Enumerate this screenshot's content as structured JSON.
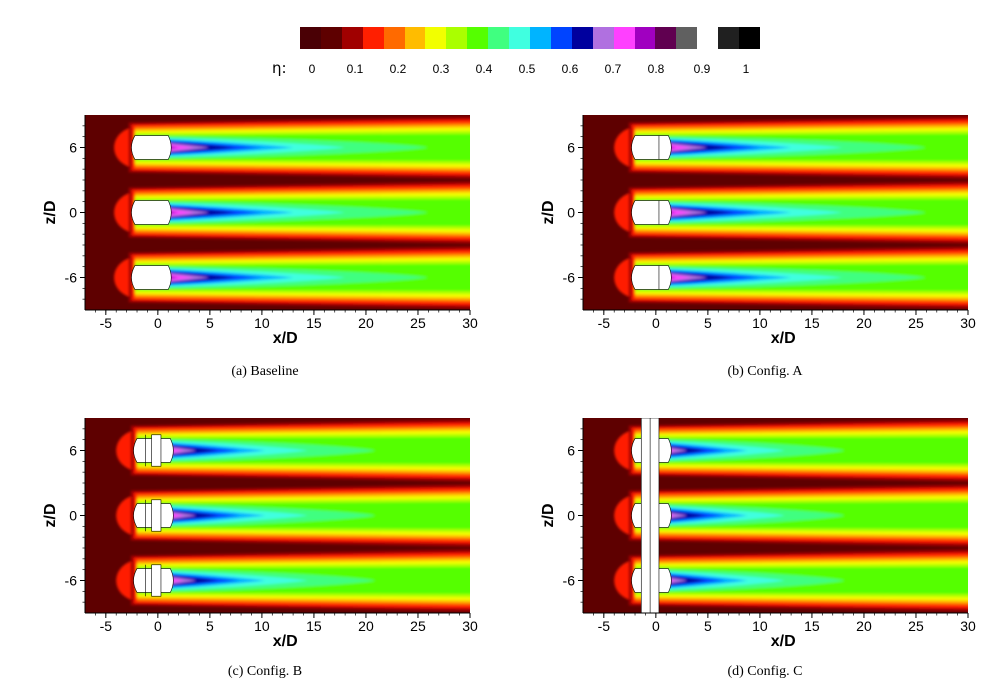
{
  "colorbar": {
    "variable": "η:",
    "tick_labels": [
      "0",
      "0.1",
      "0.2",
      "0.3",
      "0.4",
      "0.5",
      "0.6",
      "0.7",
      "0.8",
      "0.9",
      "1"
    ],
    "colors": [
      "#4a0005",
      "#5e0000",
      "#a00000",
      "#ff1f00",
      "#ff6a00",
      "#ffbc00",
      "#f2ff00",
      "#aaff00",
      "#55ff00",
      "#40ff80",
      "#40ffe0",
      "#00b4ff",
      "#0044ff",
      "#00009e",
      "#b070e0",
      "#ff40ff",
      "#a000c0",
      "#600050",
      "#606060",
      "#ffffff",
      "#202020",
      "#000000"
    ]
  },
  "chart_data": [
    {
      "type": "heatmap",
      "caption": "(a)  Baseline",
      "xlabel": "x/D",
      "ylabel": "z/D",
      "xlim": [
        -7,
        30
      ],
      "ylim": [
        -9,
        9
      ],
      "xticks": [
        "-5",
        "0",
        "5",
        "10",
        "15",
        "20",
        "25",
        "30"
      ],
      "yticks": [
        "6",
        "0",
        "-6"
      ],
      "jet_centers_zD": [
        6,
        0,
        -6
      ],
      "colorscale_range": [
        0,
        1
      ],
      "config": "baseline"
    },
    {
      "type": "heatmap",
      "caption": "(b)  Config.  A",
      "xlabel": "x/D",
      "ylabel": "z/D",
      "xlim": [
        -7,
        30
      ],
      "ylim": [
        -9,
        9
      ],
      "xticks": [
        "-5",
        "0",
        "5",
        "10",
        "15",
        "20",
        "25",
        "30"
      ],
      "yticks": [
        "6",
        "0",
        "-6"
      ],
      "jet_centers_zD": [
        6,
        0,
        -6
      ],
      "colorscale_range": [
        0,
        1
      ],
      "config": "A"
    },
    {
      "type": "heatmap",
      "caption": "(c)  Config.  B",
      "xlabel": "x/D",
      "ylabel": "z/D",
      "xlim": [
        -7,
        30
      ],
      "ylim": [
        -9,
        9
      ],
      "xticks": [
        "-5",
        "0",
        "5",
        "10",
        "15",
        "20",
        "25",
        "30"
      ],
      "yticks": [
        "6",
        "0",
        "-6"
      ],
      "jet_centers_zD": [
        6,
        0,
        -6
      ],
      "colorscale_range": [
        0,
        1
      ],
      "config": "B"
    },
    {
      "type": "heatmap",
      "caption": "(d)  Config.  C",
      "xlabel": "x/D",
      "ylabel": "z/D",
      "xlim": [
        -7,
        30
      ],
      "ylim": [
        -9,
        9
      ],
      "xticks": [
        "-5",
        "0",
        "5",
        "10",
        "15",
        "20",
        "25",
        "30"
      ],
      "yticks": [
        "6",
        "0",
        "-6"
      ],
      "jet_centers_zD": [
        6,
        0,
        -6
      ],
      "colorscale_range": [
        0,
        1
      ],
      "config": "C"
    }
  ]
}
